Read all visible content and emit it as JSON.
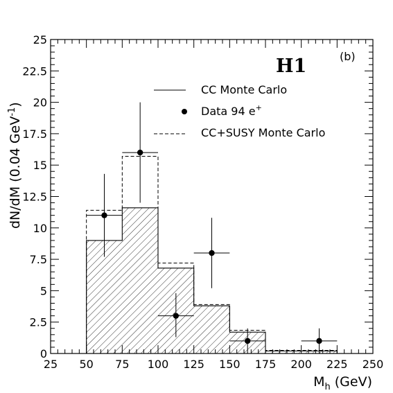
{
  "chart_data": {
    "type": "histogram",
    "experiment_label": "H1",
    "panel_label": "(b)",
    "xlabel": {
      "base": "M",
      "sub": "h",
      "rest": " (GeV)"
    },
    "ylabel": {
      "main": "dN/dM  (0.04 GeV",
      "sup": "-1",
      "close": ")"
    },
    "xlim": [
      25,
      250
    ],
    "ylim": [
      0,
      25
    ],
    "xticks": [
      "25",
      "50",
      "75",
      "100",
      "125",
      "150",
      "175",
      "200",
      "225",
      "250"
    ],
    "yticks": [
      "0",
      "2.5",
      "5",
      "7.5",
      "10",
      "12.5",
      "15",
      "17.5",
      "20",
      "22.5",
      "25"
    ],
    "bin_edges": [
      25,
      50,
      75,
      100,
      125,
      150,
      175,
      200,
      225
    ],
    "cc_mc": [
      0,
      9.0,
      11.6,
      6.8,
      3.8,
      1.7,
      0.2,
      0.2
    ],
    "cc_susy_mc": [
      0,
      11.4,
      15.7,
      7.2,
      3.9,
      1.85,
      0.25,
      0.25
    ],
    "data": [
      {
        "x": 62.5,
        "y": 11,
        "xerr": 12.5,
        "ylo": 7.7,
        "yhi": 14.3
      },
      {
        "x": 87.5,
        "y": 16,
        "xerr": 12.5,
        "ylo": 12.0,
        "yhi": 20.0
      },
      {
        "x": 112.5,
        "y": 3,
        "xerr": 12.5,
        "ylo": 1.3,
        "yhi": 4.8
      },
      {
        "x": 137.5,
        "y": 8,
        "xerr": 12.5,
        "ylo": 5.2,
        "yhi": 10.8
      },
      {
        "x": 162.5,
        "y": 1,
        "xerr": 12.5,
        "ylo": 0,
        "yhi": 2.0
      },
      {
        "x": 212.5,
        "y": 1,
        "xerr": 12.5,
        "ylo": 0,
        "yhi": 2.0
      }
    ],
    "legend": {
      "placement": "top-right",
      "cc_mc": "CC Monte Carlo",
      "data_base": "Data 94 e",
      "data_sup": "+",
      "susy": "CC+SUSY Monte Carlo"
    }
  }
}
